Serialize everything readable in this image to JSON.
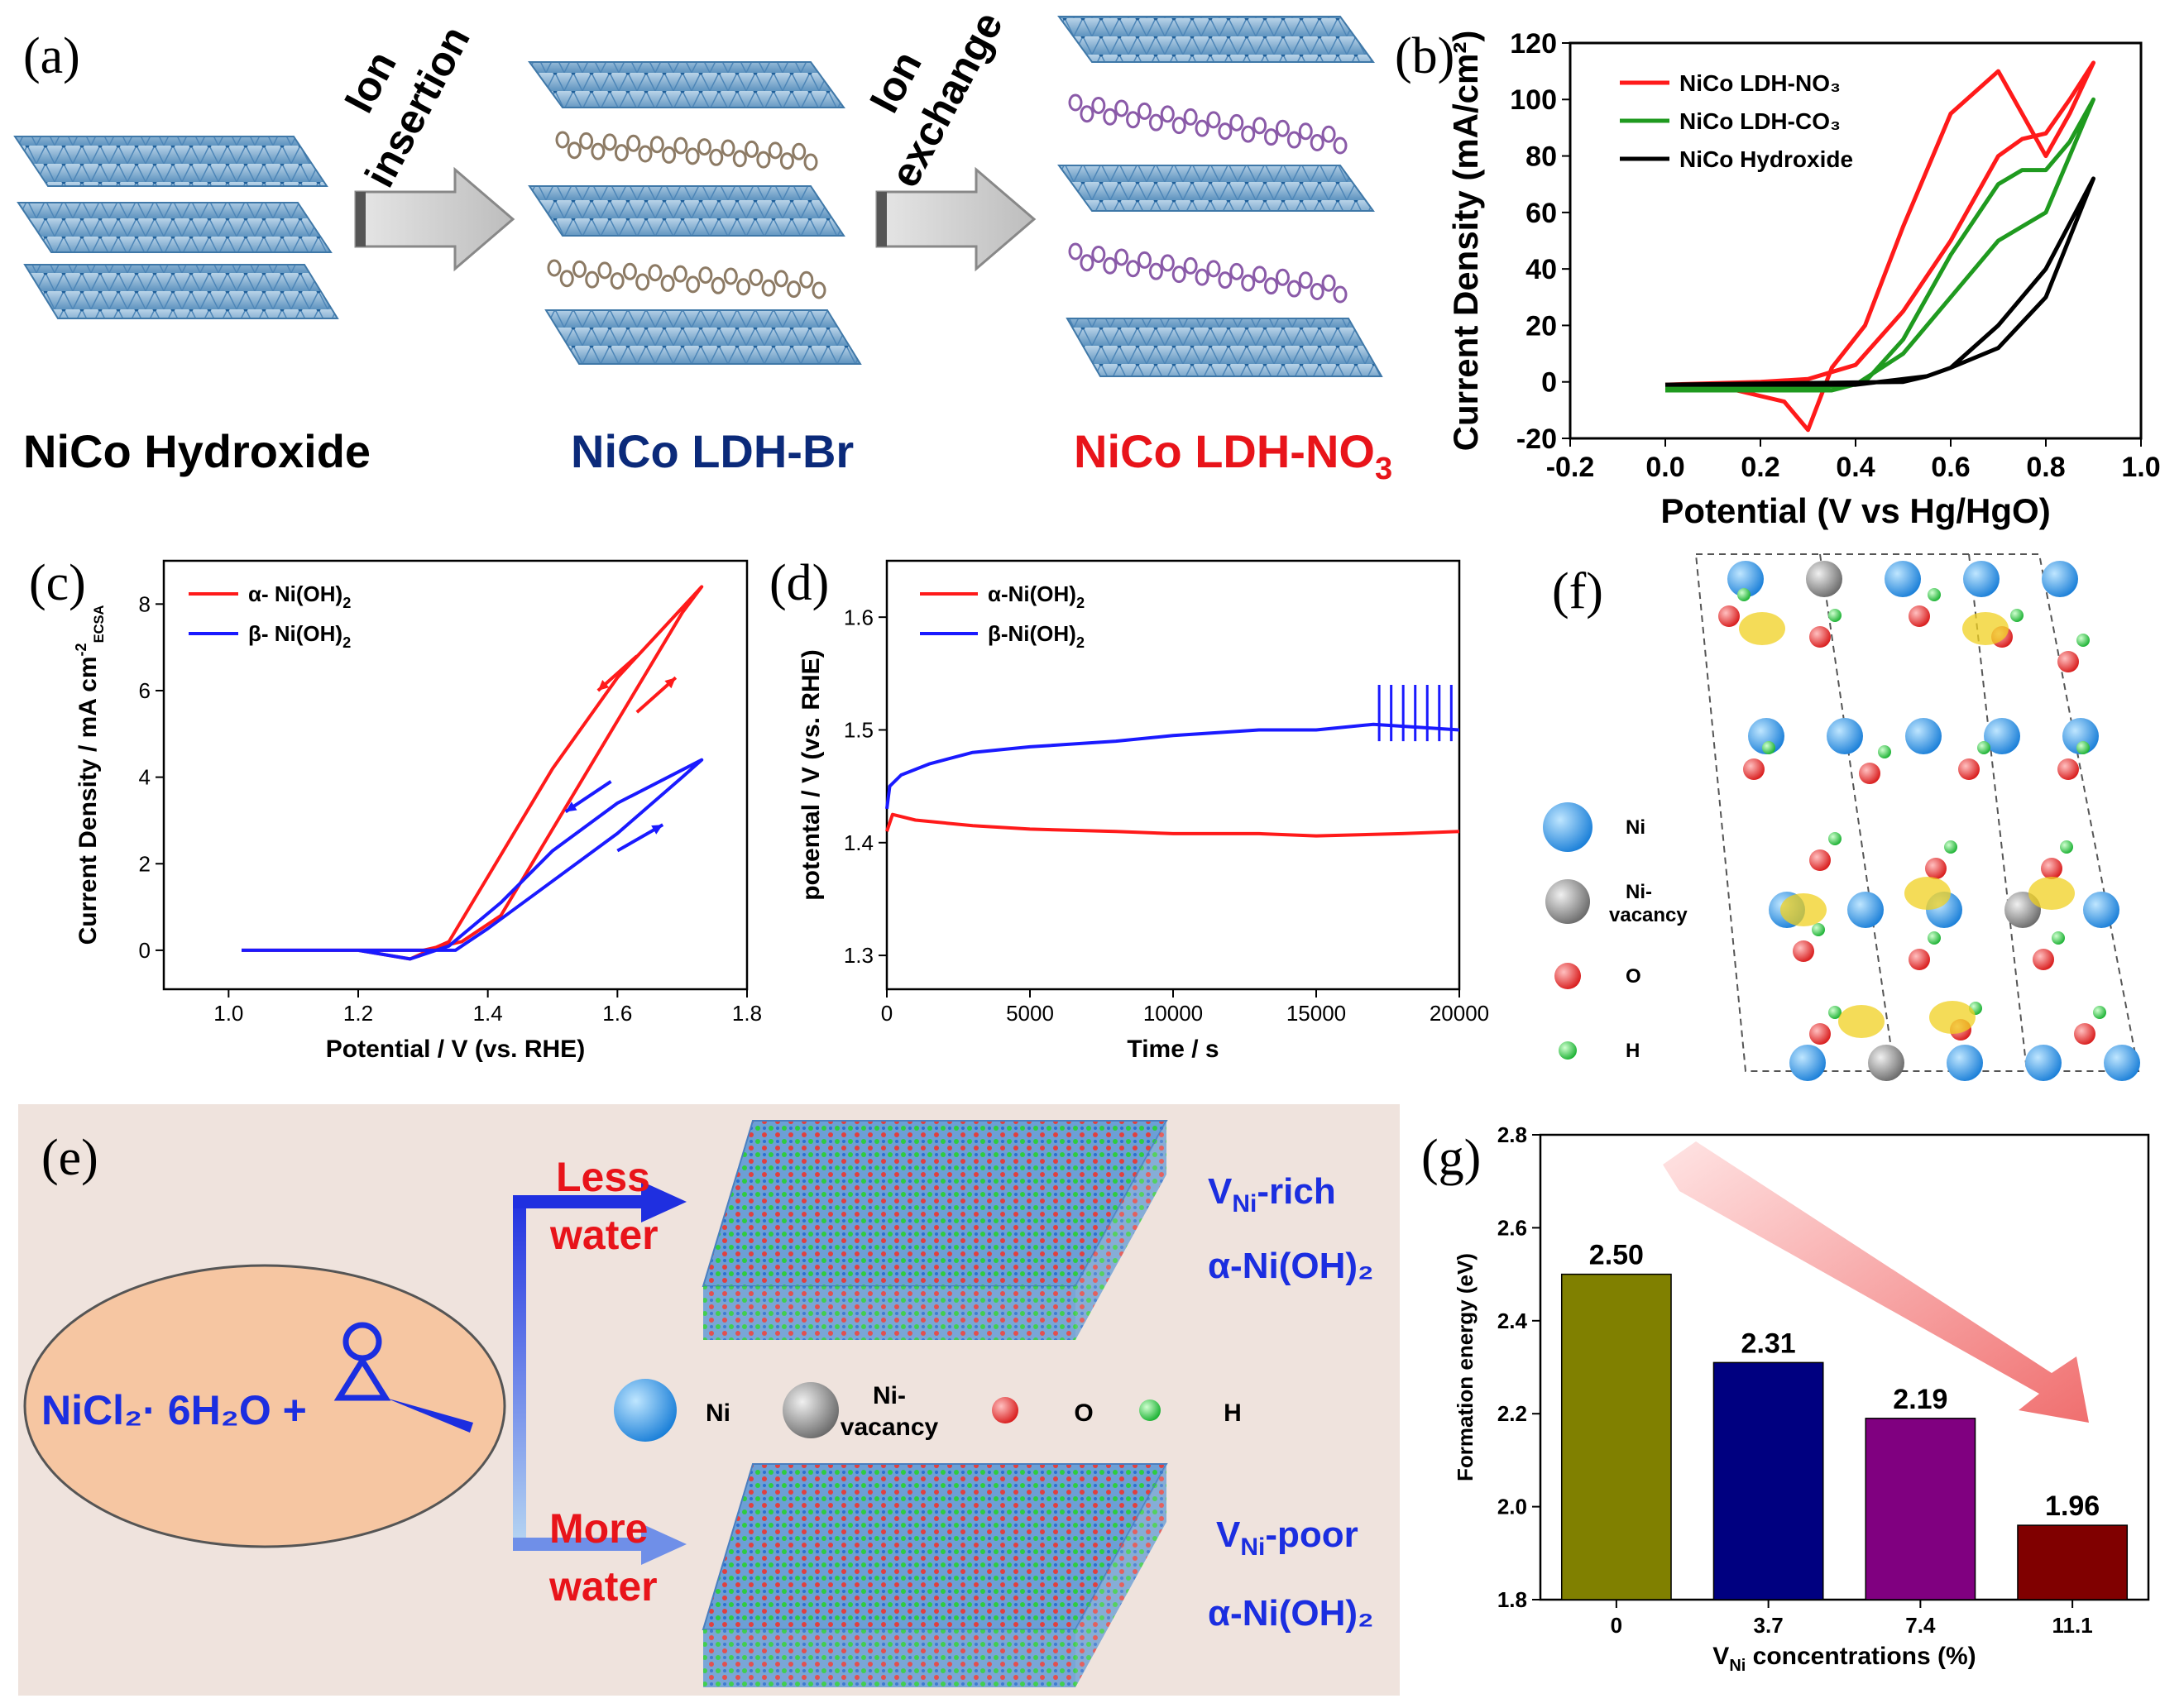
{
  "panel_labels": {
    "a": "(a)",
    "b": "(b)",
    "c": "(c)",
    "d": "(d)",
    "e": "(e)",
    "f": "(f)",
    "g": "(g)"
  },
  "panel_a": {
    "arrow1_line1": "Ion",
    "arrow1_line2": "insertion",
    "arrow2_line1": "Ion",
    "arrow2_line2": "exchange",
    "caption_left": "NiCo Hydroxide",
    "caption_mid": "NiCo LDH-Br",
    "caption_right": "NiCo LDH-NO",
    "caption_right_sub": "3",
    "colors": {
      "layer": "#8fb6d6",
      "layer_dark": "#3f78a8",
      "br": "#8c7a64",
      "no3": "#8a5aa8",
      "arrow": "#c8c8c8"
    }
  },
  "panel_f": {
    "legend": [
      {
        "label": "Ni",
        "color": "#2b8fe0"
      },
      {
        "label": "Ni-",
        "label2": "vacancy",
        "color": "#8a8a8a"
      },
      {
        "label": "O",
        "color": "#e03030"
      },
      {
        "label": "H",
        "color": "#2ecc40"
      }
    ],
    "iso_color": "#f0d020"
  },
  "panel_e": {
    "reactant": "NiCl₂· 6H₂O +",
    "upper_label1": "Less",
    "upper_label2": "water",
    "lower_label1": "More",
    "lower_label2": "water",
    "upper_product1": "V",
    "upper_product1_sub": "Ni",
    "upper_product1_tail": "-rich",
    "upper_product2": "α-Ni(OH)₂",
    "lower_product1": "V",
    "lower_product1_sub": "Ni",
    "lower_product1_tail": "-poor",
    "lower_product2": "α-Ni(OH)₂",
    "legend": [
      {
        "label": "Ni",
        "color": "#2b8fe0"
      },
      {
        "label": "Ni-",
        "label2": "vacancy",
        "color": "#8a8a8a"
      },
      {
        "label": "O",
        "color": "#e03030"
      },
      {
        "label": "H",
        "color": "#2ecc40"
      }
    ],
    "colors": {
      "bg": "#efe3dd",
      "ellipse": "#f6c6a2",
      "label_red": "#e8141a",
      "label_blue": "#1b2ee0"
    }
  },
  "chart_data": [
    {
      "id": "b",
      "type": "line",
      "xlabel": "Potential (V vs Hg/HgO)",
      "ylabel": "Current Density (mA/cm²)",
      "xlim": [
        -0.2,
        1.0
      ],
      "ylim": [
        -20,
        120
      ],
      "xticks": [
        -0.2,
        0.0,
        0.2,
        0.4,
        0.6,
        0.8,
        1.0
      ],
      "xtick_labels": [
        "-0.2",
        "0.0",
        "0.2",
        "0.4",
        "0.6",
        "0.8",
        "1.0"
      ],
      "yticks": [
        -20,
        0,
        20,
        40,
        60,
        80,
        100,
        120
      ],
      "ytick_labels": [
        "-20",
        "0",
        "20",
        "40",
        "60",
        "80",
        "100",
        "120"
      ],
      "legend_position": "top-left",
      "series": [
        {
          "name": "NiCo LDH-NO₃",
          "color": "#ff1a1a",
          "forward": [
            [
              0,
              -1
            ],
            [
              0.2,
              0
            ],
            [
              0.3,
              1
            ],
            [
              0.4,
              6
            ],
            [
              0.5,
              25
            ],
            [
              0.6,
              50
            ],
            [
              0.7,
              80
            ],
            [
              0.75,
              86
            ],
            [
              0.8,
              88
            ],
            [
              0.85,
              100
            ],
            [
              0.9,
              113
            ]
          ],
          "backward": [
            [
              0.9,
              113
            ],
            [
              0.85,
              95
            ],
            [
              0.8,
              80
            ],
            [
              0.75,
              95
            ],
            [
              0.7,
              110
            ],
            [
              0.6,
              95
            ],
            [
              0.5,
              55
            ],
            [
              0.42,
              20
            ],
            [
              0.35,
              5
            ],
            [
              0.3,
              -17
            ],
            [
              0.25,
              -7
            ],
            [
              0.15,
              -3
            ],
            [
              0,
              -2
            ]
          ]
        },
        {
          "name": "NiCo LDH-CO₃",
          "color": "#1f9a1f",
          "forward": [
            [
              0,
              -2
            ],
            [
              0.3,
              -2
            ],
            [
              0.4,
              -1
            ],
            [
              0.5,
              10
            ],
            [
              0.6,
              30
            ],
            [
              0.7,
              50
            ],
            [
              0.75,
              55
            ],
            [
              0.8,
              60
            ],
            [
              0.85,
              80
            ],
            [
              0.9,
              100
            ]
          ],
          "backward": [
            [
              0.9,
              100
            ],
            [
              0.85,
              85
            ],
            [
              0.8,
              75
            ],
            [
              0.75,
              75
            ],
            [
              0.7,
              70
            ],
            [
              0.6,
              45
            ],
            [
              0.5,
              15
            ],
            [
              0.42,
              0
            ],
            [
              0.35,
              -3
            ],
            [
              0,
              -3
            ]
          ]
        },
        {
          "name": "NiCo Hydroxide",
          "color": "#000000",
          "forward": [
            [
              0,
              -1
            ],
            [
              0.4,
              -1
            ],
            [
              0.55,
              2
            ],
            [
              0.6,
              5
            ],
            [
              0.7,
              12
            ],
            [
              0.8,
              30
            ],
            [
              0.9,
              72
            ]
          ],
          "backward": [
            [
              0.9,
              72
            ],
            [
              0.8,
              40
            ],
            [
              0.7,
              20
            ],
            [
              0.6,
              5
            ],
            [
              0.55,
              2
            ],
            [
              0.5,
              0
            ],
            [
              0,
              -1
            ]
          ]
        }
      ]
    },
    {
      "id": "c",
      "type": "line",
      "xlabel": "Potential / V (vs. RHE)",
      "ylabel": "Current Density / mA cm",
      "ylabel_sup": "-2",
      "ylabel_sub": "ECSA",
      "xlim": [
        0.9,
        1.8
      ],
      "ylim": [
        -0.9,
        9
      ],
      "xticks": [
        1.0,
        1.2,
        1.4,
        1.6,
        1.8
      ],
      "xtick_labels": [
        "1.0",
        "1.2",
        "1.4",
        "1.6",
        "1.8"
      ],
      "yticks": [
        0,
        2,
        4,
        6,
        8
      ],
      "ytick_labels": [
        "0",
        "2",
        "4",
        "6",
        "8"
      ],
      "legend_position": "top-left",
      "series": [
        {
          "name": "α- Ni(OH)",
          "name_sub": "2",
          "color": "#ff1a1a",
          "forward": [
            [
              1.02,
              0
            ],
            [
              1.2,
              0
            ],
            [
              1.3,
              0
            ],
            [
              1.36,
              0.2
            ],
            [
              1.42,
              0.8
            ],
            [
              1.5,
              2.8
            ],
            [
              1.6,
              5.3
            ],
            [
              1.7,
              7.8
            ],
            [
              1.73,
              8.4
            ]
          ],
          "backward": [
            [
              1.73,
              8.4
            ],
            [
              1.6,
              6.3
            ],
            [
              1.5,
              4.2
            ],
            [
              1.4,
              1.7
            ],
            [
              1.34,
              0.2
            ],
            [
              1.28,
              -0.2
            ],
            [
              1.2,
              0
            ],
            [
              1.02,
              0
            ]
          ]
        },
        {
          "name": "β- Ni(OH)",
          "name_sub": "2",
          "color": "#1a1aff",
          "forward": [
            [
              1.02,
              0
            ],
            [
              1.2,
              0
            ],
            [
              1.35,
              0
            ],
            [
              1.4,
              0.5
            ],
            [
              1.5,
              1.6
            ],
            [
              1.6,
              2.7
            ],
            [
              1.7,
              4
            ],
            [
              1.73,
              4.4
            ]
          ],
          "backward": [
            [
              1.73,
              4.4
            ],
            [
              1.6,
              3.4
            ],
            [
              1.5,
              2.3
            ],
            [
              1.42,
              1.1
            ],
            [
              1.34,
              0.1
            ],
            [
              1.28,
              -0.2
            ],
            [
              1.2,
              0
            ],
            [
              1.02,
              0
            ]
          ]
        }
      ]
    },
    {
      "id": "d",
      "type": "line",
      "xlabel": "Time / s",
      "ylabel": "potental / V (vs. RHE)",
      "xlim": [
        0,
        20000
      ],
      "ylim": [
        1.27,
        1.65
      ],
      "xticks": [
        0,
        5000,
        10000,
        15000,
        20000
      ],
      "xtick_labels": [
        "0",
        "5000",
        "10000",
        "15000",
        "20000"
      ],
      "yticks": [
        1.3,
        1.4,
        1.5,
        1.6
      ],
      "ytick_labels": [
        "1.3",
        "1.4",
        "1.5",
        "1.6"
      ],
      "legend_position": "top-left",
      "series": [
        {
          "name": "α-Ni(OH)",
          "name_sub": "2",
          "color": "#ff1a1a",
          "points": [
            [
              0,
              1.41
            ],
            [
              200,
              1.425
            ],
            [
              1000,
              1.42
            ],
            [
              3000,
              1.415
            ],
            [
              5000,
              1.412
            ],
            [
              8000,
              1.41
            ],
            [
              10000,
              1.408
            ],
            [
              13000,
              1.408
            ],
            [
              15000,
              1.406
            ],
            [
              18000,
              1.408
            ],
            [
              20000,
              1.41
            ]
          ]
        },
        {
          "name": "β-Ni(OH)",
          "name_sub": "2",
          "color": "#1a1aff",
          "points": [
            [
              0,
              1.43
            ],
            [
              100,
              1.45
            ],
            [
              500,
              1.46
            ],
            [
              1500,
              1.47
            ],
            [
              3000,
              1.48
            ],
            [
              5000,
              1.485
            ],
            [
              8000,
              1.49
            ],
            [
              10000,
              1.495
            ],
            [
              13000,
              1.5
            ],
            [
              15000,
              1.5
            ],
            [
              17000,
              1.505
            ],
            [
              20000,
              1.5
            ]
          ]
        }
      ]
    },
    {
      "id": "g",
      "type": "bar",
      "xlabel": "V",
      "xlabel_sub": "Ni",
      "xlabel_tail": " concentrations (%)",
      "ylabel": "Formation energy (eV)",
      "ylim": [
        1.8,
        2.8
      ],
      "yticks": [
        1.8,
        2.0,
        2.2,
        2.4,
        2.6,
        2.8
      ],
      "ytick_labels": [
        "1.8",
        "2.0",
        "2.2",
        "2.4",
        "2.6",
        "2.8"
      ],
      "categories": [
        "0",
        "3.7",
        "7.4",
        "11.1"
      ],
      "values": [
        2.5,
        2.31,
        2.19,
        1.96
      ],
      "value_labels": [
        "2.50",
        "2.31",
        "2.19",
        "1.96"
      ],
      "colors": [
        "#808000",
        "#000080",
        "#800080",
        "#800000"
      ]
    }
  ]
}
